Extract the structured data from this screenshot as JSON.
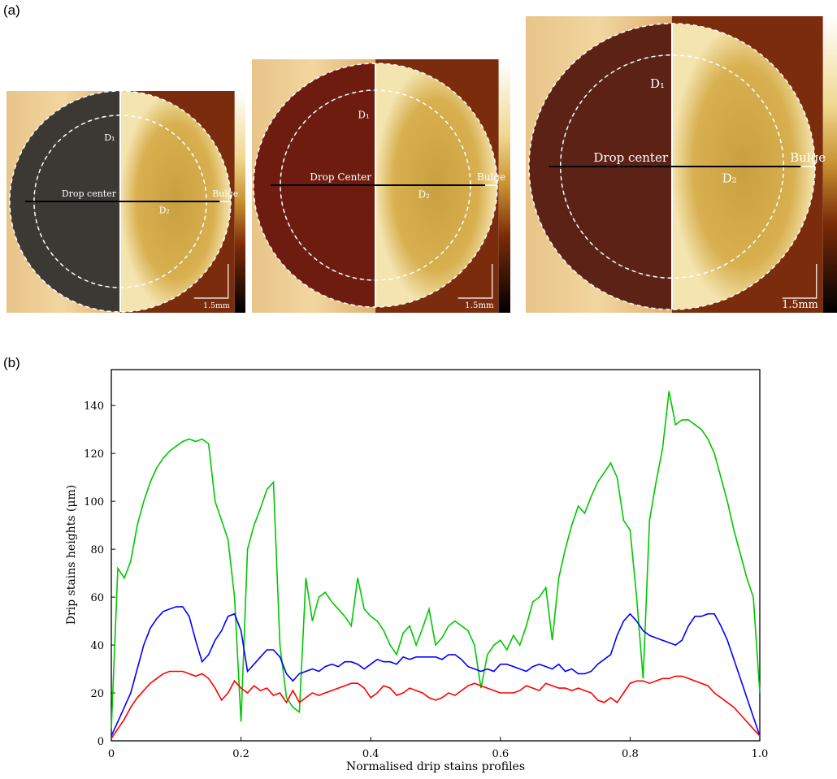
{
  "figure": {
    "panel_labels": [
      "(a)",
      "(b)"
    ],
    "images": [
      {
        "d1": "D₁",
        "center": "Drop center",
        "d2": "D₂",
        "bulge": "Bulge",
        "scale": "1.5mm"
      },
      {
        "d1": "D₁",
        "center": "Drop Center",
        "d2": "D₂",
        "bulge": "Bulge",
        "scale": "1.5mm"
      },
      {
        "d1": "D₁",
        "center": "Drop center",
        "d2": "D₂",
        "bulge": "Bulge",
        "scale": "1.5mm"
      }
    ]
  },
  "chart_data": {
    "type": "line",
    "xlabel": "Normalised drip stains profiles",
    "ylabel": "Drip stains heights (μm)",
    "x": [
      0,
      0.01,
      0.02,
      0.03,
      0.04,
      0.05,
      0.06,
      0.07,
      0.08,
      0.09,
      0.1,
      0.11,
      0.12,
      0.13,
      0.14,
      0.15,
      0.16,
      0.17,
      0.18,
      0.19,
      0.2,
      0.21,
      0.22,
      0.23,
      0.24,
      0.25,
      0.26,
      0.27,
      0.28,
      0.29,
      0.3,
      0.31,
      0.32,
      0.33,
      0.34,
      0.35,
      0.36,
      0.37,
      0.38,
      0.39,
      0.4,
      0.41,
      0.42,
      0.43,
      0.44,
      0.45,
      0.46,
      0.47,
      0.48,
      0.49,
      0.5,
      0.51,
      0.52,
      0.53,
      0.54,
      0.55,
      0.56,
      0.57,
      0.58,
      0.59,
      0.6,
      0.61,
      0.62,
      0.63,
      0.64,
      0.65,
      0.66,
      0.67,
      0.68,
      0.69,
      0.7,
      0.71,
      0.72,
      0.73,
      0.74,
      0.75,
      0.76,
      0.77,
      0.78,
      0.79,
      0.8,
      0.81,
      0.82,
      0.83,
      0.84,
      0.85,
      0.86,
      0.87,
      0.88,
      0.89,
      0.9,
      0.91,
      0.92,
      0.93,
      0.94,
      0.95,
      0.96,
      0.97,
      0.98,
      0.99,
      1
    ],
    "series": [
      {
        "color": "#00c800",
        "values": [
          5,
          72,
          68,
          75,
          90,
          100,
          108,
          114,
          118,
          121,
          123,
          125,
          126,
          125,
          126,
          124,
          100,
          92,
          84,
          60,
          8,
          80,
          90,
          97,
          105,
          108,
          40,
          18,
          14,
          12,
          68,
          50,
          60,
          62,
          58,
          55,
          52,
          48,
          68,
          55,
          52,
          50,
          46,
          40,
          36,
          45,
          48,
          40,
          47,
          55,
          40,
          43,
          48,
          50,
          48,
          46,
          40,
          22,
          36,
          40,
          42,
          38,
          44,
          40,
          48,
          58,
          60,
          64,
          42,
          68,
          80,
          90,
          98,
          95,
          102,
          108,
          112,
          116,
          110,
          92,
          88,
          60,
          26,
          92,
          108,
          122,
          146,
          132,
          134,
          134,
          132,
          130,
          126,
          120,
          110,
          100,
          88,
          78,
          68,
          60,
          20
        ]
      },
      {
        "color": "#0000ff",
        "values": [
          2,
          8,
          14,
          20,
          30,
          40,
          47,
          51,
          54,
          55,
          56,
          56,
          52,
          42,
          33,
          36,
          42,
          46,
          52,
          53,
          46,
          29,
          32,
          35,
          38,
          38,
          35,
          28,
          25,
          28,
          29,
          30,
          29,
          31,
          32,
          31,
          33,
          33,
          32,
          30,
          32,
          34,
          33,
          33,
          32,
          35,
          34,
          35,
          35,
          35,
          35,
          34,
          36,
          36,
          34,
          31,
          30,
          29,
          30,
          29,
          32,
          32,
          31,
          30,
          29,
          31,
          32,
          31,
          30,
          32,
          29,
          30,
          28,
          28,
          29,
          32,
          34,
          36,
          44,
          50,
          53,
          50,
          46,
          44,
          43,
          42,
          41,
          40,
          42,
          48,
          52,
          52,
          53,
          53,
          48,
          42,
          34,
          26,
          18,
          10,
          2
        ]
      },
      {
        "color": "#ff0000",
        "values": [
          1,
          5,
          9,
          14,
          18,
          21,
          24,
          26,
          28,
          29,
          29,
          29,
          28,
          27,
          28,
          26,
          22,
          17,
          20,
          25,
          22,
          20,
          23,
          21,
          22,
          19,
          20,
          16,
          21,
          16,
          18,
          20,
          19,
          20,
          21,
          22,
          23,
          24,
          24,
          22,
          18,
          20,
          23,
          22,
          19,
          20,
          22,
          21,
          20,
          18,
          17,
          18,
          20,
          19,
          21,
          23,
          24,
          23,
          22,
          21,
          20,
          20,
          20,
          21,
          23,
          22,
          21,
          24,
          23,
          22,
          22,
          21,
          22,
          21,
          20,
          17,
          16,
          18,
          16,
          20,
          24,
          25,
          25,
          24,
          25,
          26,
          26,
          27,
          27,
          26,
          25,
          24,
          23,
          20,
          18,
          16,
          14,
          11,
          8,
          5,
          2
        ]
      }
    ],
    "xlim": [
      0,
      1
    ],
    "ylim": [
      0,
      155
    ],
    "xticks": [
      0,
      0.2,
      0.4,
      0.6,
      0.8,
      {
        "value": 1,
        "label": "1.0"
      }
    ],
    "yticks": [
      0,
      20,
      40,
      60,
      80,
      100,
      120,
      140
    ]
  }
}
